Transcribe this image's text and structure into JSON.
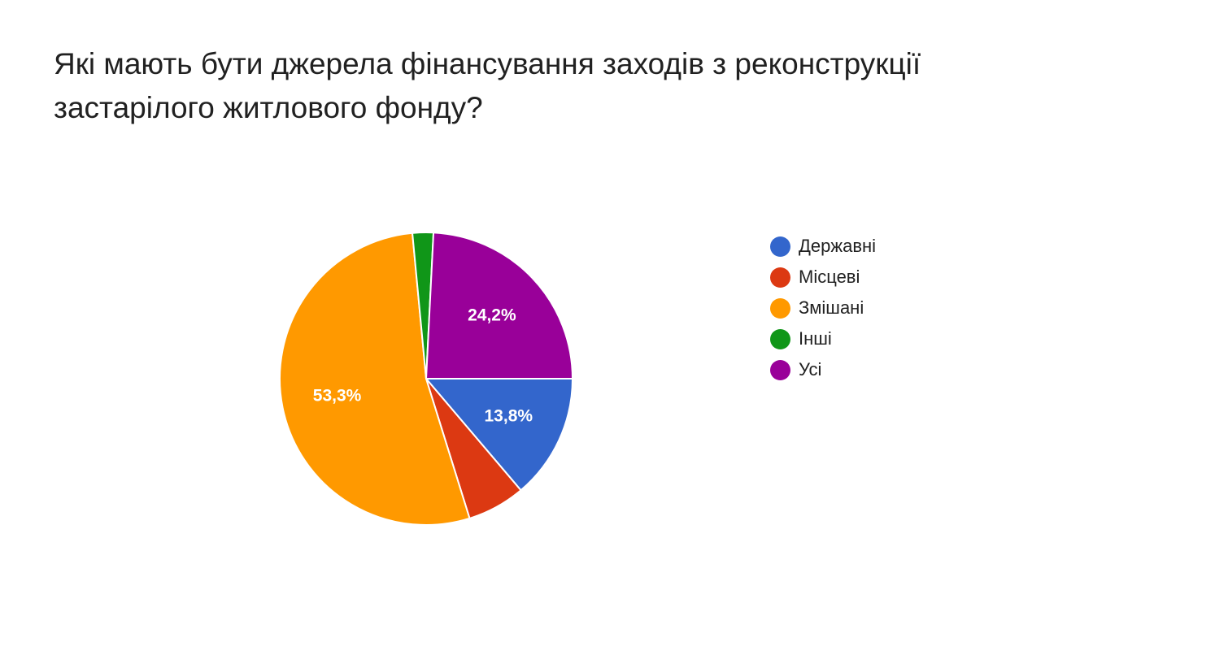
{
  "title_lines": [
    "Які мають бути джерела фінансування заходів з реконструкції",
    "застарілого житлового фонду?"
  ],
  "chart_data": {
    "type": "pie",
    "title": "Які мають бути джерела фінансування заходів з реконструкції застарілого житлового фонду?",
    "start_angle_deg": 90,
    "direction": "clockwise",
    "legend_position": "right",
    "slices": [
      {
        "name": "Державні",
        "value": 13.8,
        "label": "13,8%",
        "color": "#3366cc"
      },
      {
        "name": "Місцеві",
        "value": 6.4,
        "label": "",
        "color": "#dc3912"
      },
      {
        "name": "Змішані",
        "value": 53.3,
        "label": "53,3%",
        "color": "#ff9900"
      },
      {
        "name": "Інші",
        "value": 2.3,
        "label": "",
        "color": "#109618"
      },
      {
        "name": "Усі",
        "value": 24.2,
        "label": "24,2%",
        "color": "#990099"
      }
    ]
  }
}
